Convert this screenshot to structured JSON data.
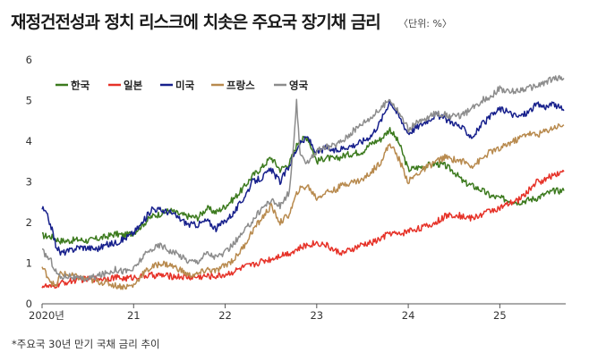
{
  "title": "재정건전성과 정치 리스크에 치솟은 주요국 장기채 금리",
  "unit_label": "〈단위: %〉",
  "footnote": "*주요국 30년 만기 국채 금리 추이",
  "chart_data": {
    "type": "line",
    "title": "재정건전성과 정치 리스크에 치솟은 주요국 장기채 금리",
    "xlabel": "",
    "ylabel": "",
    "ylim": [
      0,
      6
    ],
    "xlim": [
      2020.0,
      2025.72
    ],
    "y_ticks": [
      "0",
      "1",
      "2",
      "3",
      "4",
      "5",
      "6"
    ],
    "x_ticks": [
      {
        "value": 2020.0,
        "label": "2020년"
      },
      {
        "value": 2021.0,
        "label": "21"
      },
      {
        "value": 2022.0,
        "label": "22"
      },
      {
        "value": 2023.0,
        "label": "23"
      },
      {
        "value": 2024.0,
        "label": "24"
      },
      {
        "value": 2025.0,
        "label": "25"
      }
    ],
    "grid": false,
    "legend_position": "top-left",
    "series": [
      {
        "name": "한국",
        "color": "#3c7a1e",
        "points": [
          [
            2020.0,
            1.68
          ],
          [
            2020.1,
            1.65
          ],
          [
            2020.2,
            1.55
          ],
          [
            2020.3,
            1.55
          ],
          [
            2020.4,
            1.58
          ],
          [
            2020.5,
            1.55
          ],
          [
            2020.6,
            1.6
          ],
          [
            2020.7,
            1.65
          ],
          [
            2020.8,
            1.72
          ],
          [
            2020.9,
            1.68
          ],
          [
            2021.0,
            1.75
          ],
          [
            2021.1,
            1.95
          ],
          [
            2021.2,
            2.15
          ],
          [
            2021.3,
            2.22
          ],
          [
            2021.4,
            2.3
          ],
          [
            2021.5,
            2.2
          ],
          [
            2021.6,
            2.15
          ],
          [
            2021.7,
            2.12
          ],
          [
            2021.8,
            2.35
          ],
          [
            2021.9,
            2.25
          ],
          [
            2022.0,
            2.4
          ],
          [
            2022.1,
            2.6
          ],
          [
            2022.2,
            2.85
          ],
          [
            2022.3,
            3.15
          ],
          [
            2022.4,
            3.35
          ],
          [
            2022.5,
            3.6
          ],
          [
            2022.6,
            3.3
          ],
          [
            2022.7,
            3.45
          ],
          [
            2022.8,
            4.0
          ],
          [
            2022.9,
            4.1
          ],
          [
            2023.0,
            3.5
          ],
          [
            2023.1,
            3.6
          ],
          [
            2023.2,
            3.55
          ],
          [
            2023.3,
            3.65
          ],
          [
            2023.4,
            3.7
          ],
          [
            2023.5,
            3.75
          ],
          [
            2023.6,
            3.95
          ],
          [
            2023.7,
            4.05
          ],
          [
            2023.8,
            4.3
          ],
          [
            2023.9,
            3.95
          ],
          [
            2024.0,
            3.3
          ],
          [
            2024.1,
            3.35
          ],
          [
            2024.2,
            3.4
          ],
          [
            2024.3,
            3.45
          ],
          [
            2024.4,
            3.4
          ],
          [
            2024.5,
            3.25
          ],
          [
            2024.6,
            3.0
          ],
          [
            2024.7,
            2.9
          ],
          [
            2024.8,
            2.8
          ],
          [
            2024.9,
            2.65
          ],
          [
            2025.0,
            2.6
          ],
          [
            2025.1,
            2.55
          ],
          [
            2025.2,
            2.5
          ],
          [
            2025.3,
            2.55
          ],
          [
            2025.4,
            2.6
          ],
          [
            2025.5,
            2.7
          ],
          [
            2025.6,
            2.78
          ],
          [
            2025.7,
            2.78
          ]
        ]
      },
      {
        "name": "일본",
        "color": "#e63228",
        "points": [
          [
            2020.0,
            0.45
          ],
          [
            2020.1,
            0.4
          ],
          [
            2020.2,
            0.5
          ],
          [
            2020.3,
            0.55
          ],
          [
            2020.4,
            0.6
          ],
          [
            2020.5,
            0.6
          ],
          [
            2020.6,
            0.62
          ],
          [
            2020.7,
            0.63
          ],
          [
            2020.8,
            0.65
          ],
          [
            2020.9,
            0.62
          ],
          [
            2021.0,
            0.65
          ],
          [
            2021.1,
            0.68
          ],
          [
            2021.2,
            0.7
          ],
          [
            2021.3,
            0.7
          ],
          [
            2021.4,
            0.68
          ],
          [
            2021.5,
            0.67
          ],
          [
            2021.6,
            0.65
          ],
          [
            2021.7,
            0.66
          ],
          [
            2021.8,
            0.68
          ],
          [
            2021.9,
            0.68
          ],
          [
            2022.0,
            0.72
          ],
          [
            2022.1,
            0.8
          ],
          [
            2022.2,
            0.9
          ],
          [
            2022.3,
            0.95
          ],
          [
            2022.4,
            1.05
          ],
          [
            2022.5,
            1.1
          ],
          [
            2022.6,
            1.2
          ],
          [
            2022.7,
            1.25
          ],
          [
            2022.8,
            1.35
          ],
          [
            2022.9,
            1.45
          ],
          [
            2023.0,
            1.5
          ],
          [
            2023.1,
            1.45
          ],
          [
            2023.2,
            1.3
          ],
          [
            2023.3,
            1.25
          ],
          [
            2023.4,
            1.35
          ],
          [
            2023.5,
            1.45
          ],
          [
            2023.6,
            1.5
          ],
          [
            2023.7,
            1.6
          ],
          [
            2023.8,
            1.75
          ],
          [
            2023.9,
            1.7
          ],
          [
            2024.0,
            1.8
          ],
          [
            2024.1,
            1.85
          ],
          [
            2024.2,
            1.9
          ],
          [
            2024.3,
            2.0
          ],
          [
            2024.4,
            2.15
          ],
          [
            2024.5,
            2.2
          ],
          [
            2024.6,
            2.15
          ],
          [
            2024.7,
            2.1
          ],
          [
            2024.8,
            2.2
          ],
          [
            2024.9,
            2.3
          ],
          [
            2025.0,
            2.35
          ],
          [
            2025.1,
            2.45
          ],
          [
            2025.2,
            2.55
          ],
          [
            2025.3,
            2.75
          ],
          [
            2025.4,
            3.0
          ],
          [
            2025.5,
            3.05
          ],
          [
            2025.6,
            3.2
          ],
          [
            2025.7,
            3.25
          ]
        ]
      },
      {
        "name": "미국",
        "color": "#17208c",
        "points": [
          [
            2020.0,
            2.35
          ],
          [
            2020.05,
            2.2
          ],
          [
            2020.1,
            1.9
          ],
          [
            2020.15,
            1.45
          ],
          [
            2020.2,
            1.25
          ],
          [
            2020.3,
            1.3
          ],
          [
            2020.4,
            1.4
          ],
          [
            2020.5,
            1.38
          ],
          [
            2020.6,
            1.35
          ],
          [
            2020.7,
            1.45
          ],
          [
            2020.8,
            1.5
          ],
          [
            2020.9,
            1.6
          ],
          [
            2021.0,
            1.75
          ],
          [
            2021.1,
            2.0
          ],
          [
            2021.2,
            2.35
          ],
          [
            2021.3,
            2.3
          ],
          [
            2021.4,
            2.25
          ],
          [
            2021.5,
            2.1
          ],
          [
            2021.6,
            1.95
          ],
          [
            2021.7,
            1.95
          ],
          [
            2021.8,
            2.05
          ],
          [
            2021.9,
            1.85
          ],
          [
            2022.0,
            2.05
          ],
          [
            2022.1,
            2.25
          ],
          [
            2022.2,
            2.6
          ],
          [
            2022.3,
            3.0
          ],
          [
            2022.4,
            3.1
          ],
          [
            2022.5,
            3.3
          ],
          [
            2022.6,
            3.0
          ],
          [
            2022.7,
            3.4
          ],
          [
            2022.8,
            3.9
          ],
          [
            2022.9,
            4.1
          ],
          [
            2023.0,
            3.7
          ],
          [
            2023.1,
            3.85
          ],
          [
            2023.2,
            3.75
          ],
          [
            2023.3,
            3.85
          ],
          [
            2023.4,
            3.9
          ],
          [
            2023.5,
            4.0
          ],
          [
            2023.6,
            4.15
          ],
          [
            2023.7,
            4.5
          ],
          [
            2023.8,
            5.0
          ],
          [
            2023.9,
            4.6
          ],
          [
            2024.0,
            4.2
          ],
          [
            2024.1,
            4.35
          ],
          [
            2024.2,
            4.5
          ],
          [
            2024.3,
            4.65
          ],
          [
            2024.4,
            4.55
          ],
          [
            2024.5,
            4.45
          ],
          [
            2024.6,
            4.3
          ],
          [
            2024.7,
            4.1
          ],
          [
            2024.8,
            4.4
          ],
          [
            2024.9,
            4.6
          ],
          [
            2025.0,
            4.8
          ],
          [
            2025.1,
            4.7
          ],
          [
            2025.2,
            4.6
          ],
          [
            2025.3,
            4.7
          ],
          [
            2025.4,
            4.9
          ],
          [
            2025.5,
            4.85
          ],
          [
            2025.6,
            4.9
          ],
          [
            2025.7,
            4.75
          ]
        ]
      },
      {
        "name": "프랑스",
        "color": "#b88a4e",
        "points": [
          [
            2020.0,
            0.9
          ],
          [
            2020.1,
            0.55
          ],
          [
            2020.15,
            0.4
          ],
          [
            2020.2,
            0.75
          ],
          [
            2020.3,
            0.7
          ],
          [
            2020.4,
            0.65
          ],
          [
            2020.5,
            0.6
          ],
          [
            2020.6,
            0.55
          ],
          [
            2020.7,
            0.52
          ],
          [
            2020.8,
            0.45
          ],
          [
            2020.9,
            0.42
          ],
          [
            2021.0,
            0.45
          ],
          [
            2021.1,
            0.75
          ],
          [
            2021.2,
            0.9
          ],
          [
            2021.3,
            1.0
          ],
          [
            2021.4,
            0.95
          ],
          [
            2021.5,
            0.85
          ],
          [
            2021.6,
            0.7
          ],
          [
            2021.7,
            0.72
          ],
          [
            2021.8,
            0.85
          ],
          [
            2021.9,
            0.8
          ],
          [
            2022.0,
            0.95
          ],
          [
            2022.1,
            1.1
          ],
          [
            2022.2,
            1.4
          ],
          [
            2022.3,
            1.8
          ],
          [
            2022.4,
            2.1
          ],
          [
            2022.5,
            2.4
          ],
          [
            2022.6,
            2.0
          ],
          [
            2022.7,
            2.2
          ],
          [
            2022.8,
            2.8
          ],
          [
            2022.9,
            2.9
          ],
          [
            2023.0,
            2.6
          ],
          [
            2023.1,
            2.75
          ],
          [
            2023.2,
            2.8
          ],
          [
            2023.3,
            2.95
          ],
          [
            2023.4,
            3.0
          ],
          [
            2023.5,
            3.05
          ],
          [
            2023.6,
            3.25
          ],
          [
            2023.7,
            3.5
          ],
          [
            2023.8,
            3.95
          ],
          [
            2023.9,
            3.55
          ],
          [
            2024.0,
            3.0
          ],
          [
            2024.1,
            3.2
          ],
          [
            2024.2,
            3.35
          ],
          [
            2024.3,
            3.5
          ],
          [
            2024.4,
            3.6
          ],
          [
            2024.5,
            3.55
          ],
          [
            2024.6,
            3.5
          ],
          [
            2024.7,
            3.4
          ],
          [
            2024.8,
            3.55
          ],
          [
            2024.9,
            3.75
          ],
          [
            2025.0,
            3.8
          ],
          [
            2025.1,
            3.95
          ],
          [
            2025.2,
            4.05
          ],
          [
            2025.3,
            4.2
          ],
          [
            2025.4,
            4.15
          ],
          [
            2025.5,
            4.25
          ],
          [
            2025.6,
            4.35
          ],
          [
            2025.7,
            4.4
          ]
        ]
      },
      {
        "name": "영국",
        "color": "#8c8c8c",
        "points": [
          [
            2020.0,
            1.3
          ],
          [
            2020.1,
            1.05
          ],
          [
            2020.15,
            0.8
          ],
          [
            2020.2,
            0.65
          ],
          [
            2020.3,
            0.7
          ],
          [
            2020.4,
            0.6
          ],
          [
            2020.5,
            0.62
          ],
          [
            2020.6,
            0.68
          ],
          [
            2020.7,
            0.75
          ],
          [
            2020.8,
            0.85
          ],
          [
            2020.9,
            0.8
          ],
          [
            2021.0,
            0.85
          ],
          [
            2021.1,
            1.15
          ],
          [
            2021.2,
            1.35
          ],
          [
            2021.3,
            1.45
          ],
          [
            2021.4,
            1.3
          ],
          [
            2021.5,
            1.2
          ],
          [
            2021.6,
            1.05
          ],
          [
            2021.7,
            1.05
          ],
          [
            2021.8,
            1.25
          ],
          [
            2021.9,
            1.15
          ],
          [
            2022.0,
            1.25
          ],
          [
            2022.1,
            1.5
          ],
          [
            2022.2,
            1.75
          ],
          [
            2022.3,
            2.05
          ],
          [
            2022.4,
            2.35
          ],
          [
            2022.5,
            2.55
          ],
          [
            2022.6,
            2.4
          ],
          [
            2022.7,
            2.75
          ],
          [
            2022.75,
            3.9
          ],
          [
            2022.78,
            5.0
          ],
          [
            2022.82,
            3.6
          ],
          [
            2022.9,
            3.5
          ],
          [
            2023.0,
            3.75
          ],
          [
            2023.1,
            3.85
          ],
          [
            2023.2,
            3.9
          ],
          [
            2023.3,
            4.05
          ],
          [
            2023.4,
            4.25
          ],
          [
            2023.5,
            4.45
          ],
          [
            2023.6,
            4.6
          ],
          [
            2023.7,
            4.8
          ],
          [
            2023.8,
            5.05
          ],
          [
            2023.9,
            4.7
          ],
          [
            2024.0,
            4.3
          ],
          [
            2024.1,
            4.45
          ],
          [
            2024.2,
            4.55
          ],
          [
            2024.3,
            4.7
          ],
          [
            2024.4,
            4.65
          ],
          [
            2024.5,
            4.6
          ],
          [
            2024.6,
            4.65
          ],
          [
            2024.7,
            4.8
          ],
          [
            2024.8,
            5.0
          ],
          [
            2024.9,
            5.1
          ],
          [
            2025.0,
            5.3
          ],
          [
            2025.1,
            5.2
          ],
          [
            2025.2,
            5.25
          ],
          [
            2025.3,
            5.3
          ],
          [
            2025.4,
            5.35
          ],
          [
            2025.5,
            5.45
          ],
          [
            2025.6,
            5.55
          ],
          [
            2025.7,
            5.55
          ]
        ]
      }
    ]
  }
}
